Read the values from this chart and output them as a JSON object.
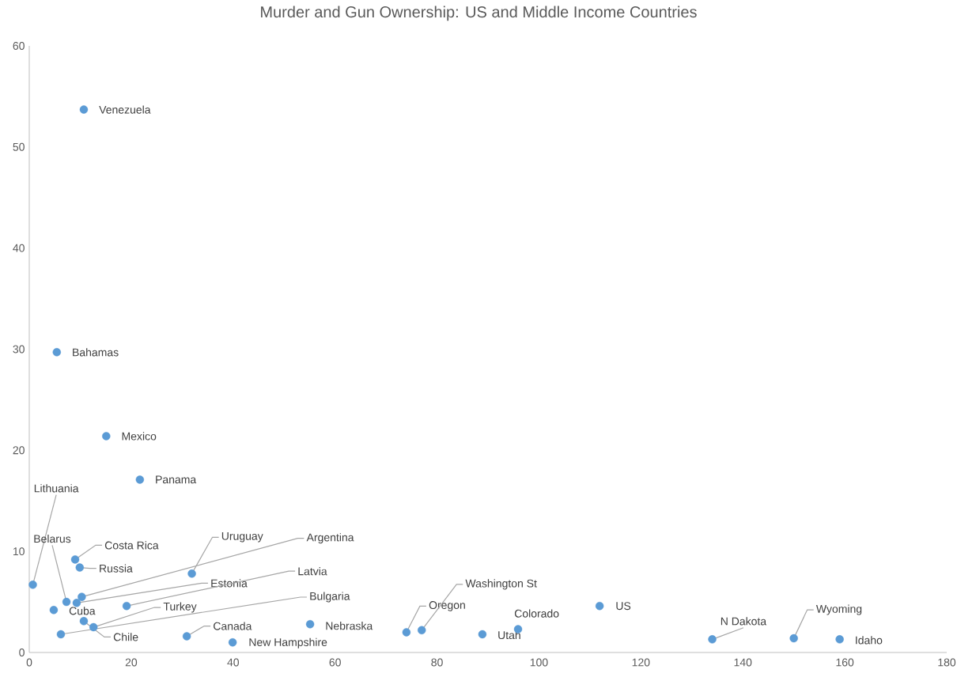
{
  "chart_data": {
    "type": "scatter",
    "title": "Murder and Gun Ownership: US and Middle Income Countries",
    "x": [
      10.7,
      5.4,
      15.1,
      21.7,
      0.7,
      7.3,
      4.8,
      9.0,
      9.9,
      10.3,
      9.3,
      19.1,
      31.9,
      12.6,
      10.7,
      6.2,
      30.9,
      39.9,
      55.1,
      74.0,
      77.0,
      88.9,
      95.9,
      111.9,
      134.0,
      150.0,
      159.0
    ],
    "values": [
      53.7,
      29.7,
      21.4,
      17.1,
      6.7,
      5.0,
      4.2,
      9.2,
      8.4,
      5.5,
      4.9,
      4.6,
      7.8,
      2.5,
      3.1,
      1.8,
      1.6,
      1.0,
      2.8,
      2.0,
      2.2,
      1.8,
      2.3,
      4.6,
      1.3,
      1.4,
      1.3
    ],
    "color": "#5b9bd5",
    "marker": "circle",
    "grid": false,
    "xlim": [
      0,
      180
    ],
    "xticks": [
      0,
      20,
      40,
      60,
      80,
      100,
      120,
      140,
      160,
      180
    ],
    "ylim": [
      0,
      60
    ],
    "yticks": [
      0,
      10,
      20,
      30,
      40,
      50,
      60
    ],
    "annotations": [
      {
        "text": "Venezuela",
        "x": 10.7,
        "y": 53.7
      },
      {
        "text": "Bahamas",
        "x": 5.4,
        "y": 29.7
      },
      {
        "text": "Mexico",
        "x": 15.1,
        "y": 21.4
      },
      {
        "text": "Panama",
        "x": 21.7,
        "y": 17.1
      },
      {
        "text": "Lithuania",
        "x": 0.7,
        "y": 6.7
      },
      {
        "text": "Belarus",
        "x": 7.3,
        "y": 5.0
      },
      {
        "text": "Cuba",
        "x": 4.8,
        "y": 4.2
      },
      {
        "text": "Costa Rica",
        "x": 9.0,
        "y": 9.2
      },
      {
        "text": "Russia",
        "x": 9.9,
        "y": 8.4
      },
      {
        "text": "Argentina",
        "x": 10.3,
        "y": 5.5
      },
      {
        "text": "Estonia",
        "x": 9.3,
        "y": 4.9
      },
      {
        "text": "Latvia",
        "x": 19.1,
        "y": 4.6
      },
      {
        "text": "Uruguay",
        "x": 31.9,
        "y": 7.8
      },
      {
        "text": "Turkey",
        "x": 12.6,
        "y": 2.5
      },
      {
        "text": "Chile",
        "x": 10.7,
        "y": 3.1
      },
      {
        "text": "Bulgaria",
        "x": 6.2,
        "y": 1.8
      },
      {
        "text": "Canada",
        "x": 30.9,
        "y": 1.6
      },
      {
        "text": "New Hampshire",
        "x": 39.9,
        "y": 1.0
      },
      {
        "text": "Nebraska",
        "x": 55.1,
        "y": 2.8
      },
      {
        "text": "Oregon",
        "x": 74.0,
        "y": 2.0
      },
      {
        "text": "Washington St",
        "x": 77.0,
        "y": 2.2
      },
      {
        "text": "Utah",
        "x": 88.9,
        "y": 1.8
      },
      {
        "text": "Colorado",
        "x": 95.9,
        "y": 2.3
      },
      {
        "text": "US",
        "x": 111.9,
        "y": 4.6
      },
      {
        "text": "N Dakota",
        "x": 134.0,
        "y": 1.3
      },
      {
        "text": "Wyoming",
        "x": 150.0,
        "y": 1.4
      },
      {
        "text": "Idaho",
        "x": 159.0,
        "y": 1.3
      }
    ]
  }
}
